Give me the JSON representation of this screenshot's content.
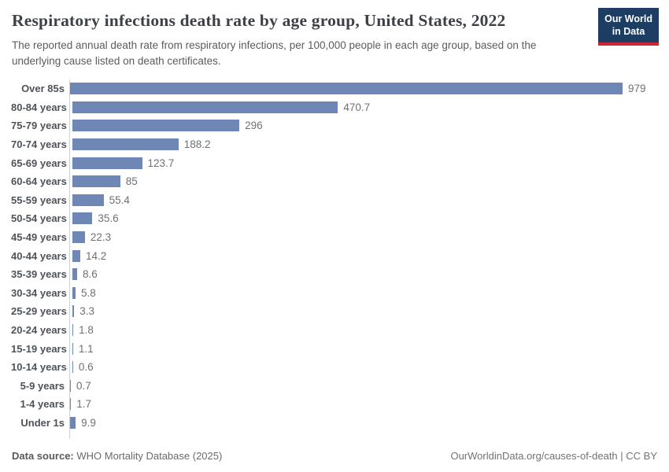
{
  "header": {
    "title": "Respiratory infections death rate by age group, United States, 2022",
    "subtitle": "The reported annual death rate from respiratory infections, per 100,000 people in each age group, based on the underlying cause listed on death certificates."
  },
  "logo": {
    "line1": "Our World",
    "line2": "in Data"
  },
  "chart_data": {
    "type": "bar",
    "orientation": "horizontal",
    "title": "Respiratory infections death rate by age group, United States, 2022",
    "xlabel": "",
    "ylabel": "",
    "xlim": [
      0,
      1000
    ],
    "grid": false,
    "legend": "none",
    "categories": [
      "Over 85s",
      "80-84 years",
      "75-79 years",
      "70-74 years",
      "65-69 years",
      "60-64 years",
      "55-59 years",
      "50-54 years",
      "45-49 years",
      "40-44 years",
      "35-39 years",
      "30-34 years",
      "25-29 years",
      "20-24 years",
      "15-19 years",
      "10-14 years",
      "5-9 years",
      "1-4 years",
      "Under 1s"
    ],
    "values": [
      979,
      470.7,
      296,
      188.2,
      123.7,
      85,
      55.4,
      35.6,
      22.3,
      14.2,
      8.6,
      5.8,
      3.3,
      1.8,
      1.1,
      0.6,
      0.7,
      1.7,
      9.9
    ],
    "value_labels": [
      "979",
      "470.7",
      "296",
      "188.2",
      "123.7",
      "85",
      "55.4",
      "35.6",
      "22.3",
      "14.2",
      "8.6",
      "5.8",
      "3.3",
      "1.8",
      "1.1",
      "0.6",
      "0.7",
      "1.7",
      "9.9"
    ]
  },
  "colors": {
    "bar": "#6e87b5",
    "logo_navy": "#1d3d63",
    "logo_red": "#cd2733",
    "axis": "#ccd1d8"
  },
  "footer": {
    "source_label": "Data source:",
    "source_text": " WHO Mortality Database (2025)",
    "right_text": "OurWorldinData.org/causes-of-death | CC BY"
  }
}
